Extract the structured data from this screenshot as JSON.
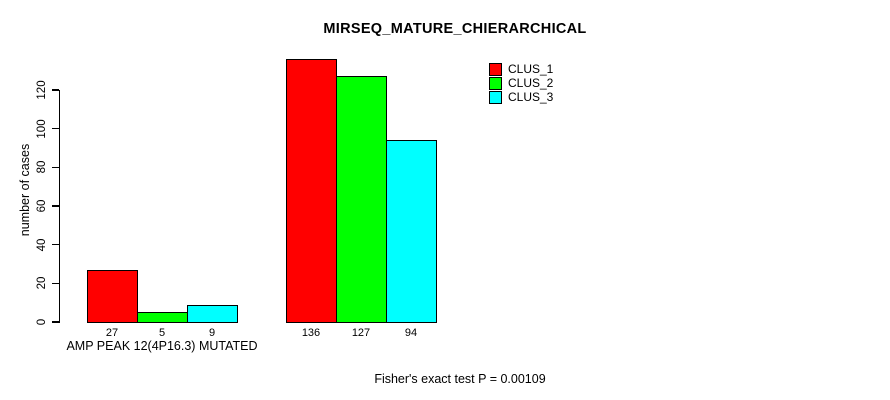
{
  "chart_data": {
    "type": "bar",
    "title": "MIRSEQ_MATURE_CHIERARCHICAL",
    "ylabel": "number of cases",
    "xlabel": "",
    "categories": [
      "AMP PEAK 12(4P16.3) MUTATED",
      ""
    ],
    "series": [
      {
        "name": "CLUS_1",
        "color": "#FF0000",
        "values": [
          27,
          136
        ]
      },
      {
        "name": "CLUS_2",
        "color": "#00FF00",
        "values": [
          5,
          127
        ]
      },
      {
        "name": "CLUS_3",
        "color": "#00FFFF",
        "values": [
          9,
          94
        ]
      }
    ],
    "bar_value_labels": [
      [
        "27",
        "5",
        "9"
      ],
      [
        "136",
        "127",
        "94"
      ]
    ],
    "ylim": [
      0,
      120
    ],
    "yticks": [
      0,
      20,
      40,
      60,
      80,
      100,
      120
    ],
    "grid": false,
    "legend_position": "top-right",
    "annotation": "Fisher's exact test P = 0.00109",
    "background": "#FFFFFF",
    "axis_color": "#000000",
    "text_color": "#000000"
  }
}
